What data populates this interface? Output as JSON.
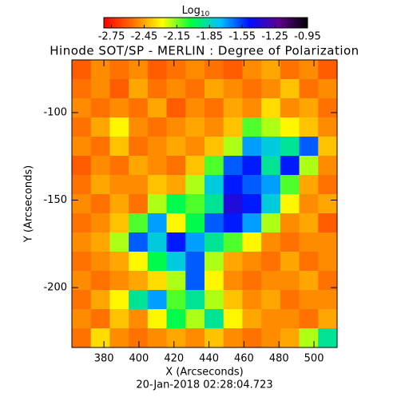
{
  "chart_data": {
    "type": "heatmap",
    "title": "Hinode SOT/SP - MERLIN : Degree of Polarization",
    "x_label": "X (Arcseconds)",
    "y_label": "Y (Arcseconds)",
    "footer": "20-Jan-2018 02:28:04.723",
    "colorbar_label": "Log",
    "colorbar_label_sub": "10",
    "colormap": [
      "#ff0000",
      "#ff7000",
      "#ffff00",
      "#00ff40",
      "#00c0ff",
      "#0010ff",
      "#600090",
      "#000000"
    ],
    "clim": [
      -2.82,
      -0.95
    ],
    "colorbar_ticks": [
      -2.75,
      -2.45,
      -2.15,
      -1.85,
      -1.55,
      -1.25,
      -0.95
    ],
    "xlim": [
      361.7,
      513.2
    ],
    "xticks": [
      380,
      400,
      420,
      440,
      460,
      480,
      500
    ],
    "ylim": [
      -234.2,
      -69.9
    ],
    "yticks": [
      -100,
      -150,
      -200
    ],
    "z": [
      [
        -2.6,
        -2.5,
        -2.55,
        -2.5,
        -2.6,
        -2.55,
        -2.5,
        -2.55,
        -2.6,
        -2.5,
        -2.45,
        -2.55,
        -2.5,
        -2.6
      ],
      [
        -2.55,
        -2.5,
        -2.6,
        -2.45,
        -2.55,
        -2.5,
        -2.55,
        -2.45,
        -2.5,
        -2.55,
        -2.5,
        -2.4,
        -2.55,
        -2.5
      ],
      [
        -2.5,
        -2.55,
        -2.5,
        -2.55,
        -2.45,
        -2.6,
        -2.5,
        -2.55,
        -2.45,
        -2.5,
        -2.35,
        -2.5,
        -2.45,
        -2.55
      ],
      [
        -2.55,
        -2.45,
        -2.3,
        -2.5,
        -2.55,
        -2.5,
        -2.45,
        -2.5,
        -2.4,
        -2.1,
        -2.2,
        -2.3,
        -2.4,
        -2.5
      ],
      [
        -2.5,
        -2.55,
        -2.4,
        -2.55,
        -2.5,
        -2.45,
        -2.5,
        -2.4,
        -2.2,
        -1.7,
        -1.8,
        -1.9,
        -1.6,
        -2.4
      ],
      [
        -2.6,
        -2.5,
        -2.55,
        -2.45,
        -2.5,
        -2.55,
        -2.4,
        -2.1,
        -1.6,
        -1.5,
        -1.9,
        -1.5,
        -2.2,
        -2.5
      ],
      [
        -2.55,
        -2.45,
        -2.5,
        -2.5,
        -2.4,
        -2.45,
        -2.2,
        -1.8,
        -1.5,
        -1.6,
        -1.7,
        -2.1,
        -2.45,
        -2.55
      ],
      [
        -2.5,
        -2.55,
        -2.45,
        -2.55,
        -2.2,
        -2.0,
        -2.1,
        -1.9,
        -1.4,
        -1.5,
        -1.8,
        -2.3,
        -2.5,
        -2.45
      ],
      [
        -2.55,
        -2.5,
        -2.4,
        -2.1,
        -1.7,
        -2.3,
        -2.0,
        -1.6,
        -1.5,
        -1.7,
        -2.2,
        -2.5,
        -2.45,
        -2.6
      ],
      [
        -2.5,
        -2.45,
        -2.2,
        -1.6,
        -1.8,
        -1.5,
        -1.7,
        -1.9,
        -2.1,
        -2.3,
        -2.5,
        -2.55,
        -2.5,
        -2.5
      ],
      [
        -2.55,
        -2.5,
        -2.45,
        -2.3,
        -2.0,
        -1.8,
        -1.6,
        -2.2,
        -2.45,
        -2.5,
        -2.55,
        -2.45,
        -2.55,
        -2.5
      ],
      [
        -2.5,
        -2.55,
        -2.5,
        -2.45,
        -2.35,
        -2.2,
        -1.6,
        -2.3,
        -2.5,
        -2.55,
        -2.5,
        -2.5,
        -2.45,
        -2.55
      ],
      [
        -2.55,
        -2.45,
        -2.3,
        -1.9,
        -1.7,
        -2.1,
        -1.9,
        -2.2,
        -2.4,
        -2.5,
        -2.45,
        -2.55,
        -2.5,
        -2.5
      ],
      [
        -2.5,
        -2.55,
        -2.4,
        -2.5,
        -2.3,
        -2.0,
        -2.2,
        -1.9,
        -2.3,
        -2.45,
        -2.5,
        -2.5,
        -2.55,
        -2.45
      ],
      [
        -2.55,
        -2.35,
        -2.5,
        -2.55,
        -2.5,
        -2.45,
        -2.5,
        -2.4,
        -2.5,
        -2.55,
        -2.5,
        -2.45,
        -2.2,
        -1.9
      ]
    ]
  }
}
